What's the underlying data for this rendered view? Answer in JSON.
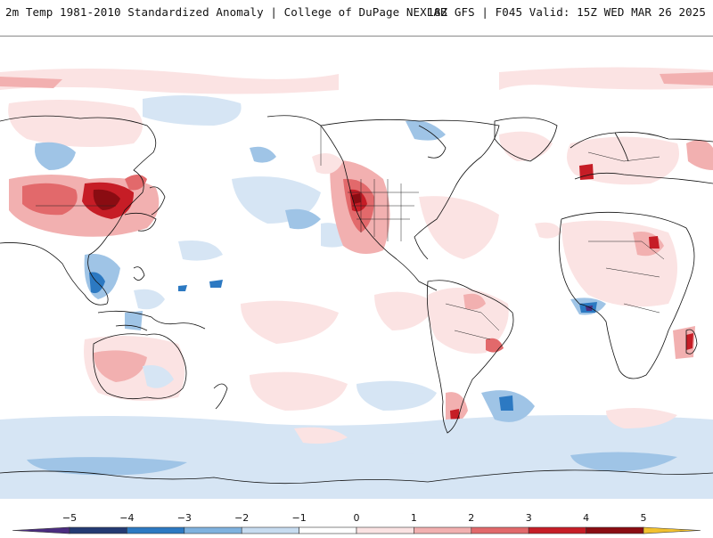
{
  "header": {
    "left_title": "2m Temp 1981-2010 Standardized Anomaly | College of DuPage NEXLAB",
    "right_title": "18Z GFS | F045 Valid: 15Z WED MAR 26 2025"
  },
  "colorbar": {
    "ticks": [
      "-5",
      "-4",
      "-3",
      "-2",
      "-1",
      "0",
      "1",
      "2",
      "3",
      "4",
      "5"
    ],
    "bins": [
      {
        "color": "#4b2c80"
      },
      {
        "color": "#233a73"
      },
      {
        "color": "#2c79c2"
      },
      {
        "color": "#7fb2df"
      },
      {
        "color": "#c7dcf0"
      },
      {
        "color": "#ffffff"
      },
      {
        "color": "#fbe3e3"
      },
      {
        "color": "#f2b0b0"
      },
      {
        "color": "#e2696b"
      },
      {
        "color": "#c61d26"
      },
      {
        "color": "#8a0c12"
      },
      {
        "color": "#f2c12e"
      }
    ]
  },
  "map": {
    "projection": "cylindrical, Pacific-centered",
    "background": "#ffffff",
    "anomaly_palette": {
      "warm_light": "#fbe3e3",
      "warm_mid": "#f2b0b0",
      "warm_strong": "#e2696b",
      "warm_extreme": "#c61d26",
      "cold_light": "#d6e5f4",
      "cold_mid": "#9fc4e6",
      "cold_strong": "#2c79c2",
      "cold_extreme": "#4b2c80"
    }
  }
}
